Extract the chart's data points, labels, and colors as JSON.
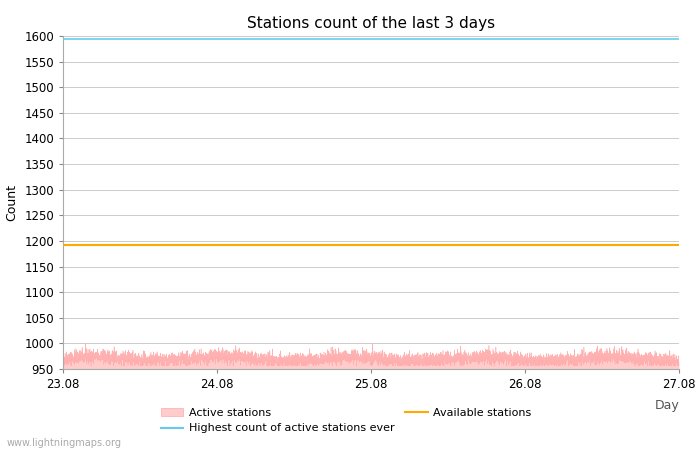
{
  "title": "Stations count of the last 3 days",
  "xlabel": "Day",
  "ylabel": "Count",
  "xlim": [
    0,
    4
  ],
  "ylim": [
    950,
    1600
  ],
  "yticks": [
    950,
    1000,
    1050,
    1100,
    1150,
    1200,
    1250,
    1300,
    1350,
    1400,
    1450,
    1500,
    1550,
    1600
  ],
  "xtick_labels": [
    "23.08",
    "24.08",
    "25.08",
    "26.08",
    "27.08"
  ],
  "xtick_positions": [
    0,
    1,
    2,
    3,
    4
  ],
  "highest_ever": 1595,
  "available_stations": 1192,
  "active_fill_color": "#ffcccc",
  "active_line_color": "#ffaaaa",
  "highest_ever_color": "#66ccee",
  "available_color": "#ffaa00",
  "watermark": "www.lightningmaps.org",
  "background_color": "#ffffff",
  "grid_color": "#cccccc",
  "title_fontsize": 11,
  "axis_fontsize": 9,
  "tick_fontsize": 8.5,
  "active_base": 970,
  "active_noise_std": 7,
  "active_clip_min": 956,
  "active_clip_max": 1002
}
